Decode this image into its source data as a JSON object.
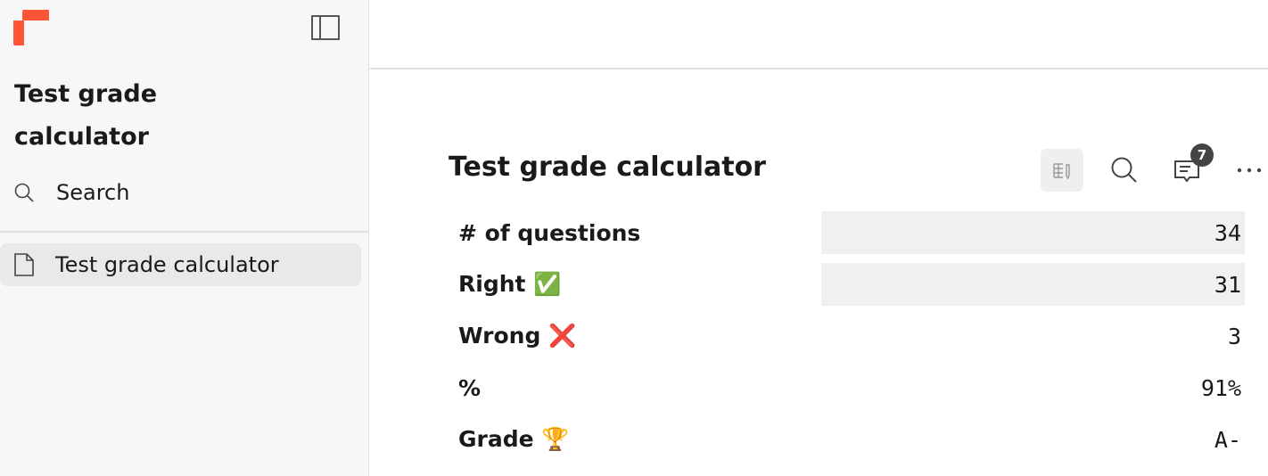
{
  "sidebar": {
    "doc_title": "Test grade calculator",
    "search_label": "Search",
    "items": [
      {
        "label": "Test grade calculator"
      }
    ]
  },
  "main": {
    "title": "Test grade calculator",
    "comments_count": "7",
    "rows": [
      {
        "label": "# of questions",
        "value": "34",
        "input": true
      },
      {
        "label": "Right ✅",
        "value": "31",
        "input": true
      },
      {
        "label": "Wrong ❌",
        "value": "3",
        "input": false
      },
      {
        "label": "%",
        "value": "91%",
        "input": false
      },
      {
        "label": "Grade 🏆",
        "value": "A-",
        "input": false
      }
    ]
  },
  "colors": {
    "brand": "#ff5436"
  }
}
